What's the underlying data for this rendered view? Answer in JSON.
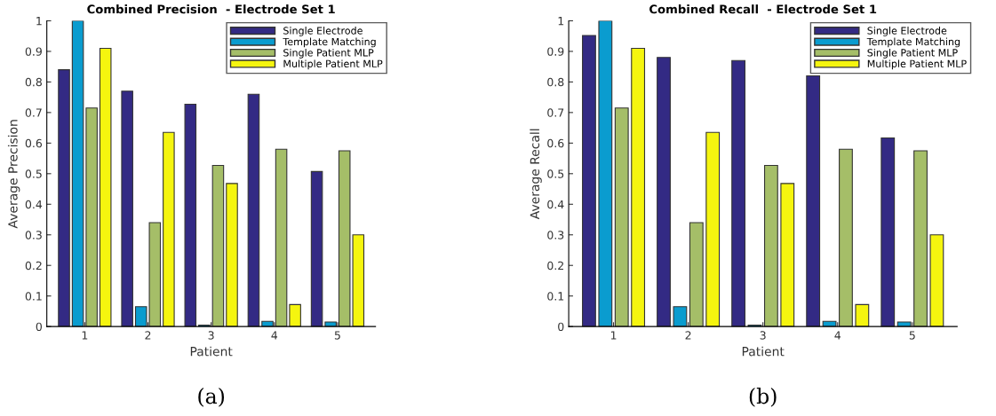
{
  "chart_data": [
    {
      "type": "bar",
      "title": "Combined Precision  - Electrode Set 1",
      "xlabel": "Patient",
      "ylabel": "Average Precision",
      "categories": [
        "1",
        "2",
        "3",
        "4",
        "5"
      ],
      "series": [
        {
          "name": "Single Electrode",
          "color": "#332a84",
          "values": [
            0.84,
            0.77,
            0.727,
            0.76,
            0.507
          ]
        },
        {
          "name": "Template Matching",
          "color": "#0a9ccf",
          "values": [
            1.0,
            0.065,
            0.005,
            0.017,
            0.015
          ]
        },
        {
          "name": "Single Patient MLP",
          "color": "#a5be68",
          "values": [
            0.715,
            0.34,
            0.527,
            0.58,
            0.575
          ]
        },
        {
          "name": "Multiple Patient MLP",
          "color": "#f5f50f",
          "values": [
            0.91,
            0.635,
            0.468,
            0.072,
            0.3
          ]
        }
      ],
      "ylim": [
        0,
        1
      ],
      "yticks": [
        0,
        0.1,
        0.2,
        0.3,
        0.4,
        0.5,
        0.6,
        0.7,
        0.8,
        0.9,
        1
      ],
      "grid": false,
      "legend": "top right",
      "annotations": [
        "(a)"
      ]
    },
    {
      "type": "bar",
      "title": "Combined Recall  - Electrode Set 1",
      "xlabel": "Patient",
      "ylabel": "Average Recall",
      "categories": [
        "1",
        "2",
        "3",
        "4",
        "5"
      ],
      "series": [
        {
          "name": "Single Electrode",
          "color": "#332a84",
          "values": [
            0.952,
            0.88,
            0.87,
            0.82,
            0.617
          ]
        },
        {
          "name": "Template Matching",
          "color": "#0a9ccf",
          "values": [
            1.0,
            0.065,
            0.005,
            0.017,
            0.015
          ]
        },
        {
          "name": "Single Patient MLP",
          "color": "#a5be68",
          "values": [
            0.715,
            0.34,
            0.527,
            0.58,
            0.575
          ]
        },
        {
          "name": "Multiple Patient MLP",
          "color": "#f5f50f",
          "values": [
            0.91,
            0.635,
            0.468,
            0.072,
            0.3
          ]
        }
      ],
      "ylim": [
        0,
        1
      ],
      "yticks": [
        0,
        0.1,
        0.2,
        0.3,
        0.4,
        0.5,
        0.6,
        0.7,
        0.8,
        0.9,
        1
      ],
      "grid": false,
      "legend": "top right",
      "annotations": [
        "(b)"
      ]
    }
  ]
}
